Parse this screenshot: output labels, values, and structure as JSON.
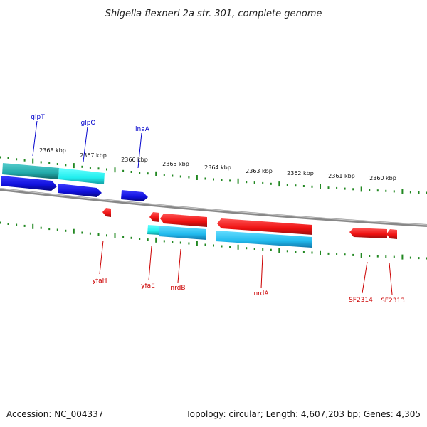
{
  "title": "Shigella flexneri 2a str. 301, complete genome",
  "footer": {
    "accession": "Accession: NC_004337",
    "summary": "Topology: circular; Length: 4,607,203 bp; Genes: 4,305"
  },
  "colors": {
    "forward_gene": "#1010dd",
    "reverse_gene": "#ee1111",
    "cds": "#22ccdd",
    "backbone": "#888888",
    "ticks": "#228822"
  },
  "scale_labels": [
    "2368 kbp",
    "2367 kbp",
    "2366 kbp",
    "2365 kbp",
    "2364 kbp",
    "2363 kbp",
    "2362 kbp",
    "2361 kbp",
    "2360 kbp"
  ],
  "genes": [
    {
      "name": "glpT",
      "strand": "forward"
    },
    {
      "name": "glpQ",
      "strand": "forward"
    },
    {
      "name": "inaA",
      "strand": "forward"
    },
    {
      "name": "yfaH",
      "strand": "reverse"
    },
    {
      "name": "yfaE",
      "strand": "reverse"
    },
    {
      "name": "nrdB",
      "strand": "reverse"
    },
    {
      "name": "nrdA",
      "strand": "reverse"
    },
    {
      "name": "SF2314",
      "strand": "reverse"
    },
    {
      "name": "SF2313",
      "strand": "reverse"
    }
  ]
}
